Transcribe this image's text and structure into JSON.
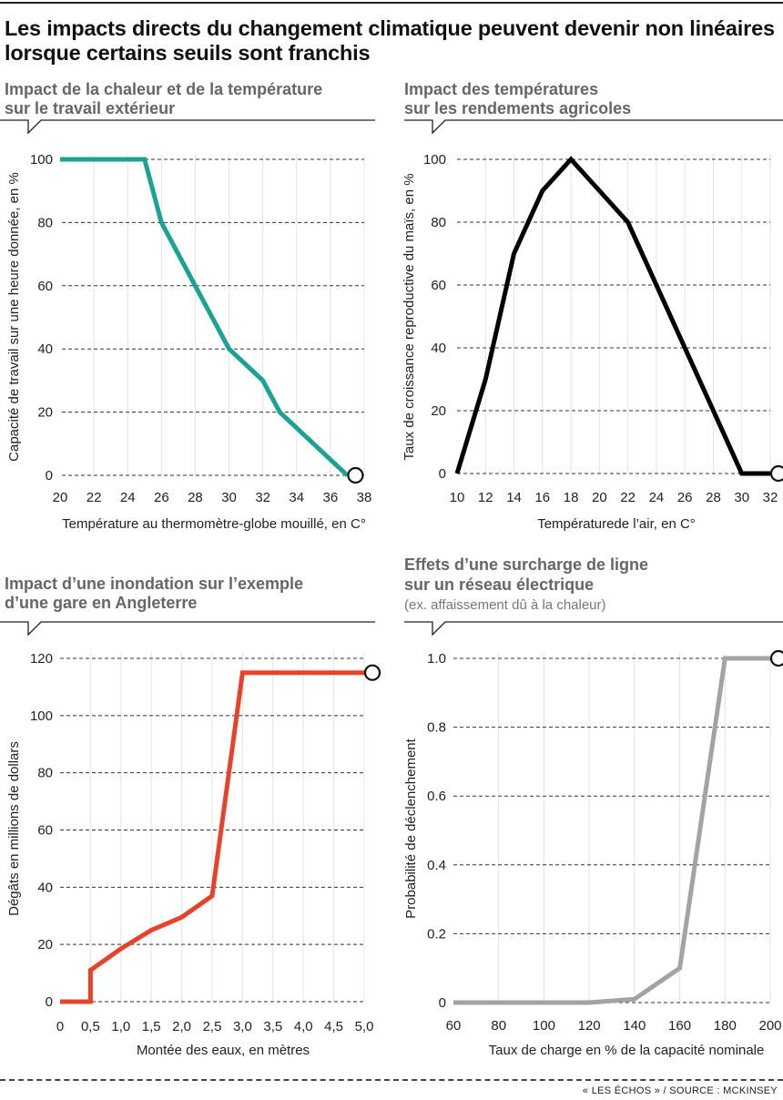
{
  "title": "Les impacts directs du changement climatique peuvent devenir non linéaires lorsque certains seuils sont franchis",
  "source": "« LES ÉCHOS » / SOURCE : MCKINSEY",
  "chart_data": [
    {
      "type": "line",
      "title": "Impact de la chaleur et de la température sur le travail extérieur",
      "subtitle": "",
      "xlabel": "Température au thermomètre-globe mouillé, en C°",
      "ylabel": "Capacité de travail sur une heure donnée, en %",
      "color": "#1aa394",
      "xlim": [
        20,
        38
      ],
      "ylim": [
        0,
        100
      ],
      "xticks": [
        "20",
        "22",
        "24",
        "26",
        "28",
        "30",
        "32",
        "34",
        "36",
        "38"
      ],
      "yticks": [
        "0",
        "20",
        "40",
        "60",
        "80",
        "100"
      ],
      "x": [
        20,
        25,
        26,
        28,
        30,
        32,
        33,
        37
      ],
      "y": [
        100,
        100,
        80,
        60,
        40,
        30,
        20,
        0
      ]
    },
    {
      "type": "line",
      "title": "Impact des températures sur les rendements agricoles",
      "subtitle": "",
      "xlabel": "Températurede l’air, en C°",
      "ylabel": "Taux de croissance reproductive du maïs, en %",
      "color": "#000000",
      "xlim": [
        10,
        32
      ],
      "ylim": [
        0,
        100
      ],
      "xticks": [
        "10",
        "12",
        "14",
        "16",
        "18",
        "20",
        "22",
        "24",
        "26",
        "28",
        "30",
        "32"
      ],
      "yticks": [
        "0",
        "20",
        "40",
        "60",
        "80",
        "100"
      ],
      "x": [
        10,
        12,
        14,
        16,
        18,
        20,
        22,
        24,
        26,
        28,
        30,
        32
      ],
      "y": [
        0,
        30,
        70,
        90,
        100,
        90,
        80,
        60,
        40,
        20,
        0,
        0
      ]
    },
    {
      "type": "line",
      "title": "Impact d’une inondation sur l’exemple d’une gare en Angleterre",
      "subtitle": "",
      "xlabel": "Montée des eaux, en mètres",
      "ylabel": "Dégâts en millions de dollars",
      "color": "#e8432a",
      "xlim": [
        0,
        5
      ],
      "ylim": [
        0,
        120
      ],
      "xticks": [
        "0",
        "0,5",
        "1,0",
        "1,5",
        "2,0",
        "2,5",
        "3,0",
        "3,5",
        "4,0",
        "4,5",
        "5,0"
      ],
      "yticks": [
        "0",
        "20",
        "40",
        "60",
        "80",
        "100",
        "120"
      ],
      "x": [
        0,
        0.5,
        0.5,
        1.0,
        1.5,
        2.0,
        2.5,
        3.0,
        5.0
      ],
      "y": [
        0,
        0,
        11,
        18.5,
        25,
        29.5,
        37,
        115,
        115
      ]
    },
    {
      "type": "line",
      "title": "Effets d’une surcharge de ligne sur un réseau électrique",
      "subtitle": "(ex. affaissement dû à la chaleur)",
      "xlabel": "Taux de charge en % de la capacité nominale",
      "ylabel": "Probabilité de déclenchement",
      "color": "#a3a3a3",
      "xlim": [
        60,
        200
      ],
      "ylim": [
        0,
        1.0
      ],
      "xticks": [
        "60",
        "80",
        "100",
        "120",
        "140",
        "160",
        "180",
        "200"
      ],
      "yticks": [
        "0",
        "0.2",
        "0.4",
        "0.6",
        "0.8",
        "1.0"
      ],
      "x": [
        60,
        120,
        140,
        160,
        180,
        200
      ],
      "y": [
        0,
        0,
        0.01,
        0.1,
        1.0,
        1.0
      ]
    }
  ]
}
